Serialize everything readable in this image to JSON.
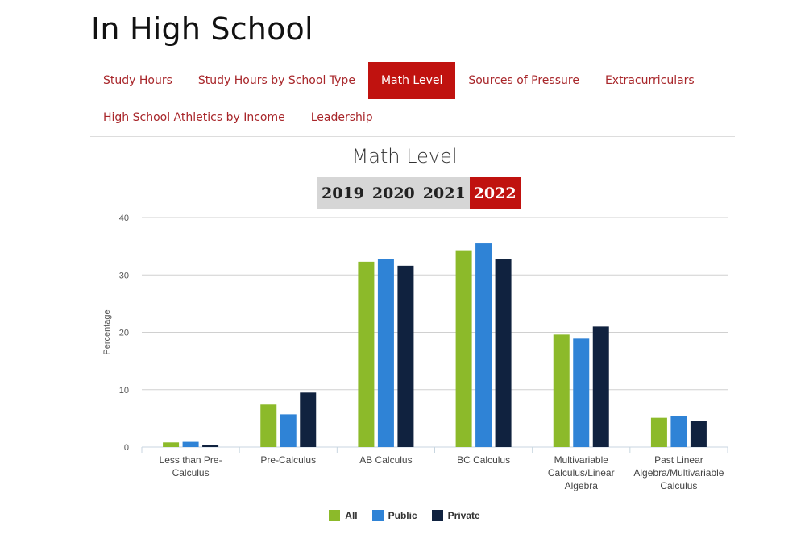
{
  "page": {
    "title": "In High School"
  },
  "tabs": [
    {
      "label": "Study Hours",
      "active": false
    },
    {
      "label": "Study Hours by School Type",
      "active": false
    },
    {
      "label": "Math Level",
      "active": true
    },
    {
      "label": "Sources of Pressure",
      "active": false
    },
    {
      "label": "Extracurriculars",
      "active": false
    },
    {
      "label": "High School Athletics by Income",
      "active": false
    },
    {
      "label": "Leadership",
      "active": false
    }
  ],
  "years": [
    {
      "label": "2019",
      "active": false
    },
    {
      "label": "2020",
      "active": false
    },
    {
      "label": "2021",
      "active": false
    },
    {
      "label": "2022",
      "active": true
    }
  ],
  "colors": {
    "accent": "#c0120f",
    "tab_text": "#a8262a",
    "All": "#8cba2a",
    "Public": "#2f83d6",
    "Private": "#10223f"
  },
  "chart_data": {
    "type": "bar",
    "title": "Math Level",
    "xlabel": "",
    "ylabel": "Percentage",
    "ylim": [
      0,
      40
    ],
    "yticks": [
      "0",
      "10",
      "20",
      "30",
      "40"
    ],
    "grid": true,
    "legend_position": "bottom",
    "categories": [
      [
        "Less than Pre-",
        "Calculus"
      ],
      [
        "Pre-Calculus"
      ],
      [
        "AB Calculus"
      ],
      [
        "BC Calculus"
      ],
      [
        "Multivariable",
        "Calculus/Linear",
        "Algebra"
      ],
      [
        "Past Linear",
        "Algebra/Multivariable",
        "Calculus"
      ]
    ],
    "series": [
      {
        "name": "All",
        "color": "#8cba2a",
        "values": [
          0.8,
          7.4,
          32.3,
          34.3,
          19.6,
          5.1
        ]
      },
      {
        "name": "Public",
        "color": "#2f83d6",
        "values": [
          0.9,
          5.7,
          32.8,
          35.5,
          18.9,
          5.4
        ]
      },
      {
        "name": "Private",
        "color": "#10223f",
        "values": [
          0.3,
          9.5,
          31.6,
          32.7,
          21.0,
          4.5
        ]
      }
    ]
  }
}
